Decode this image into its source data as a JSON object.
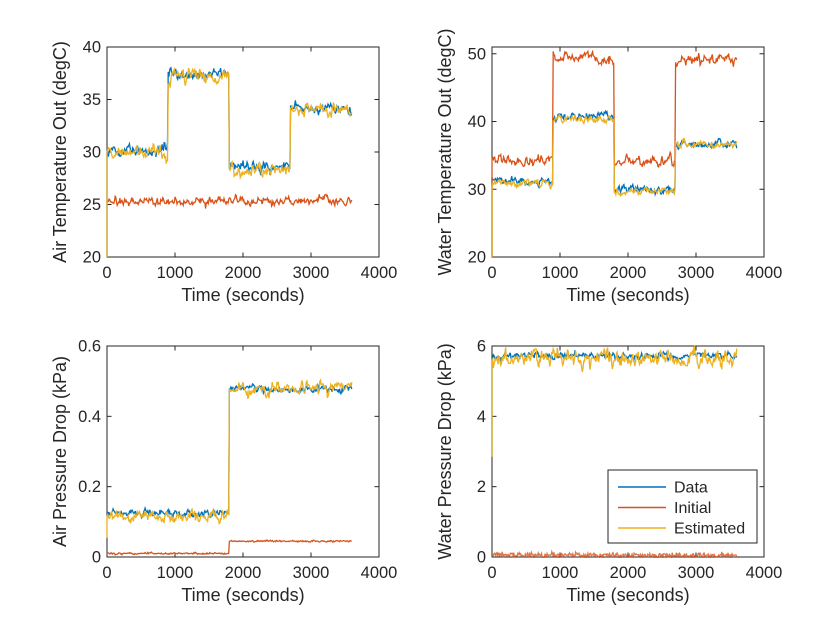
{
  "figure": {
    "background": "#ffffff",
    "axis_color": "#262626",
    "text_color": "#262626",
    "series_colors": {
      "data": "#0072BD",
      "initial": "#D95319",
      "estimated": "#EDB120"
    }
  },
  "chart_data": [
    {
      "id": "air-temperature-out",
      "type": "line",
      "title": "",
      "xlabel": "Time (seconds)",
      "ylabel": "Air Temperature Out (degC)",
      "xlim": [
        0,
        4000
      ],
      "ylim": [
        20,
        40
      ],
      "xticks": [
        0,
        1000,
        2000,
        3000,
        4000
      ],
      "xtick_labels": [
        "0",
        "1000",
        "2000",
        "3000",
        "4000"
      ],
      "yticks": [
        20,
        25,
        30,
        35,
        40
      ],
      "ytick_labels": [
        "20",
        "25",
        "30",
        "35",
        "40"
      ],
      "grid": false,
      "data_time_range": [
        0,
        3600
      ],
      "series": [
        {
          "name": "Data",
          "color": "#0072BD",
          "start": 20,
          "noise": 0.28,
          "phi": 0.6,
          "steps": [
            {
              "t0": 0,
              "t1": 900,
              "level": 30.1
            },
            {
              "t0": 900,
              "t1": 1800,
              "level": 37.4
            },
            {
              "t0": 1800,
              "t1": 2700,
              "level": 28.6
            },
            {
              "t0": 2700,
              "t1": 3600,
              "level": 34.2
            }
          ]
        },
        {
          "name": "Initial",
          "color": "#D95319",
          "start": null,
          "noise": 0.22,
          "phi": 0.6,
          "steps": [
            {
              "t0": 0,
              "t1": 3600,
              "level": 25.3
            }
          ]
        },
        {
          "name": "Estimated",
          "color": "#EDB120",
          "start": 20,
          "noise": 0.33,
          "phi": 0.6,
          "steps": [
            {
              "t0": 0,
              "t1": 900,
              "level": 29.9
            },
            {
              "t0": 900,
              "t1": 1800,
              "level": 37.3
            },
            {
              "t0": 1800,
              "t1": 2700,
              "level": 28.4
            },
            {
              "t0": 2700,
              "t1": 3600,
              "level": 33.9
            }
          ]
        }
      ],
      "legend": null
    },
    {
      "id": "water-temperature-out",
      "type": "line",
      "title": "",
      "xlabel": "Time (seconds)",
      "ylabel": "Water Temperature Out (degC)",
      "xlim": [
        0,
        4000
      ],
      "ylim": [
        20,
        51
      ],
      "xticks": [
        0,
        1000,
        2000,
        3000,
        4000
      ],
      "xtick_labels": [
        "0",
        "1000",
        "2000",
        "3000",
        "4000"
      ],
      "yticks": [
        20,
        30,
        40,
        50
      ],
      "ytick_labels": [
        "20",
        "30",
        "40",
        "50"
      ],
      "grid": false,
      "data_time_range": [
        0,
        3600
      ],
      "series": [
        {
          "name": "Data",
          "color": "#0072BD",
          "start": 20,
          "noise": 0.3,
          "phi": 0.6,
          "steps": [
            {
              "t0": 0,
              "t1": 900,
              "level": 31.2
            },
            {
              "t0": 900,
              "t1": 1800,
              "level": 40.8
            },
            {
              "t0": 1800,
              "t1": 2700,
              "level": 29.9
            },
            {
              "t0": 2700,
              "t1": 3600,
              "level": 36.6
            }
          ]
        },
        {
          "name": "Initial",
          "color": "#D95319",
          "start": 20,
          "noise": 0.45,
          "phi": 0.6,
          "steps": [
            {
              "t0": 0,
              "t1": 900,
              "level": 34.2
            },
            {
              "t0": 900,
              "t1": 1800,
              "level": 49.4
            },
            {
              "t0": 1800,
              "t1": 2700,
              "level": 34.1
            },
            {
              "t0": 2700,
              "t1": 3600,
              "level": 49.0
            }
          ]
        },
        {
          "name": "Estimated",
          "color": "#EDB120",
          "start": 20,
          "noise": 0.33,
          "phi": 0.6,
          "steps": [
            {
              "t0": 0,
              "t1": 900,
              "level": 30.9
            },
            {
              "t0": 900,
              "t1": 1800,
              "level": 40.3
            },
            {
              "t0": 1800,
              "t1": 2700,
              "level": 29.7
            },
            {
              "t0": 2700,
              "t1": 3600,
              "level": 36.7
            }
          ]
        }
      ],
      "legend": null
    },
    {
      "id": "air-pressure-drop",
      "type": "line",
      "title": "",
      "xlabel": "Time (seconds)",
      "ylabel": "Air Pressure Drop (kPa)",
      "xlim": [
        0,
        4000
      ],
      "ylim": [
        0,
        0.6
      ],
      "xticks": [
        0,
        1000,
        2000,
        3000,
        4000
      ],
      "xtick_labels": [
        "0",
        "1000",
        "2000",
        "3000",
        "4000"
      ],
      "yticks": [
        0,
        0.2,
        0.4,
        0.6
      ],
      "ytick_labels": [
        "0",
        "0.2",
        "0.4",
        "0.6"
      ],
      "grid": false,
      "data_time_range": [
        0,
        3600
      ],
      "series": [
        {
          "name": "Data",
          "color": "#0072BD",
          "start": null,
          "noise": 0.006,
          "phi": 0.6,
          "steps": [
            {
              "t0": 0,
              "t1": 1800,
              "level": 0.123
            },
            {
              "t0": 1800,
              "t1": 3600,
              "level": 0.478
            }
          ]
        },
        {
          "name": "Initial",
          "color": "#D95319",
          "start": null,
          "noise": 0.0012,
          "phi": 0.3,
          "steps": [
            {
              "t0": 0,
              "t1": 1800,
              "level": 0.01
            },
            {
              "t0": 1800,
              "t1": 3600,
              "level": 0.045
            }
          ]
        },
        {
          "name": "Estimated",
          "color": "#EDB120",
          "start": 0.055,
          "noise": 0.009,
          "phi": 0.6,
          "steps": [
            {
              "t0": 0,
              "t1": 1800,
              "level": 0.116
            },
            {
              "t0": 1800,
              "t1": 3600,
              "level": 0.478
            }
          ]
        }
      ],
      "legend": null
    },
    {
      "id": "water-pressure-drop",
      "type": "line",
      "title": "",
      "xlabel": "Time (seconds)",
      "ylabel": "Water Pressure Drop (kPa)",
      "xlim": [
        0,
        4000
      ],
      "ylim": [
        0,
        6
      ],
      "xticks": [
        0,
        1000,
        2000,
        3000,
        4000
      ],
      "xtick_labels": [
        "0",
        "1000",
        "2000",
        "3000",
        "4000"
      ],
      "yticks": [
        0,
        2,
        4,
        6
      ],
      "ytick_labels": [
        "0",
        "2",
        "4",
        "6"
      ],
      "grid": false,
      "data_time_range": [
        0,
        3600
      ],
      "series": [
        {
          "name": "Data",
          "color": "#0072BD",
          "start": 2.85,
          "noise": 0.055,
          "phi": 0.6,
          "steps": [
            {
              "t0": 0,
              "t1": 3600,
              "level": 5.72
            }
          ]
        },
        {
          "name": "Initial",
          "color": "#D95319",
          "start": null,
          "noise": 0.04,
          "phi": 0.0,
          "opacity": 0.8,
          "steps": [
            {
              "t0": 0,
              "t1": 3600,
              "level": 0.05
            }
          ]
        },
        {
          "name": "Estimated",
          "color": "#EDB120",
          "start": 2.85,
          "noise": 0.13,
          "phi": 0.6,
          "steps": [
            {
              "t0": 0,
              "t1": 3600,
              "level": 5.65
            }
          ]
        }
      ],
      "legend": {
        "position": "inside-right",
        "entries": [
          "Data",
          "Initial",
          "Estimated"
        ]
      }
    }
  ]
}
